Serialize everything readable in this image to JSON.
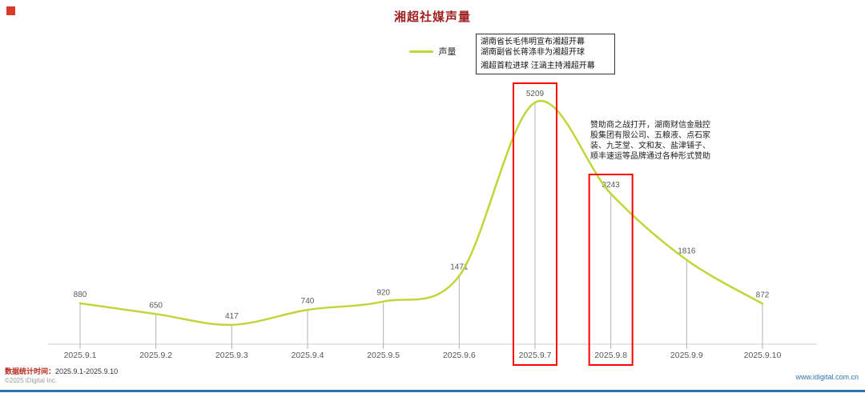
{
  "page": {
    "title": "湘超社媒声量"
  },
  "legend": {
    "label": "声量"
  },
  "chart_data": {
    "type": "line",
    "title": "湘超社媒声量",
    "legend": [
      "声量"
    ],
    "categories": [
      "2025.9.1",
      "2025.9.2",
      "2025.9.3",
      "2025.9.4",
      "2025.9.5",
      "2025.9.6",
      "2025.9.7",
      "2025.9.8",
      "2025.9.9",
      "2025.9.10"
    ],
    "values": [
      880,
      650,
      417,
      740,
      920,
      1471,
      5209,
      3243,
      1816,
      872
    ],
    "xlabel": "",
    "ylabel": "",
    "ylim": [
      0,
      5209
    ],
    "grid": false,
    "legend_position": "top-center",
    "line_color": "#c2d53a",
    "stem_color": "#b3b3b3",
    "axis_color": "#cccccc",
    "label_color": "#595959",
    "highlight_color": "#ff0000",
    "highlight_indices": [
      6,
      7
    ]
  },
  "annotations": {
    "opening": {
      "lines": [
        "湖南省长毛伟明宣布湘超开幕",
        "湖南副省长蒋涤非为湘超开球",
        "湘超首粒进球  汪涵主持湘超开幕"
      ]
    },
    "sponsor": {
      "text": "赞助商之战打开，湖南财信金融控股集团有限公司、五粮液、点石家装、九芝堂、文和友、盐津铺子、顺丰速运等品牌通过各种形式赞助"
    }
  },
  "footer": {
    "stat_label": "数据统计时间：",
    "stat_range": "2025.9.1-2025.9.10",
    "copyright": "©2025 iDigital Inc.",
    "website": "www.idigital.com.cn"
  }
}
